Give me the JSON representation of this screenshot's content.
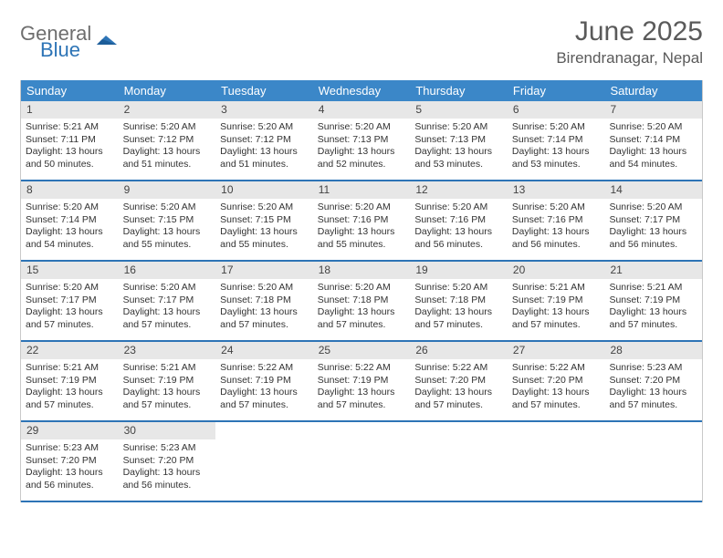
{
  "brand": {
    "general": "General",
    "blue": "Blue"
  },
  "header": {
    "title": "June 2025",
    "location": "Birendranagar, Nepal"
  },
  "colors": {
    "header_bg": "#3b87c8",
    "header_text": "#ffffff",
    "week_border": "#2d74b6",
    "daynum_bg": "#e7e7e7",
    "page_bg": "#ffffff",
    "text": "#333333"
  },
  "weekdays": [
    "Sunday",
    "Monday",
    "Tuesday",
    "Wednesday",
    "Thursday",
    "Friday",
    "Saturday"
  ],
  "weeks": [
    [
      {
        "n": "1",
        "sunrise": "Sunrise: 5:21 AM",
        "sunset": "Sunset: 7:11 PM",
        "daylight": "Daylight: 13 hours and 50 minutes."
      },
      {
        "n": "2",
        "sunrise": "Sunrise: 5:20 AM",
        "sunset": "Sunset: 7:12 PM",
        "daylight": "Daylight: 13 hours and 51 minutes."
      },
      {
        "n": "3",
        "sunrise": "Sunrise: 5:20 AM",
        "sunset": "Sunset: 7:12 PM",
        "daylight": "Daylight: 13 hours and 51 minutes."
      },
      {
        "n": "4",
        "sunrise": "Sunrise: 5:20 AM",
        "sunset": "Sunset: 7:13 PM",
        "daylight": "Daylight: 13 hours and 52 minutes."
      },
      {
        "n": "5",
        "sunrise": "Sunrise: 5:20 AM",
        "sunset": "Sunset: 7:13 PM",
        "daylight": "Daylight: 13 hours and 53 minutes."
      },
      {
        "n": "6",
        "sunrise": "Sunrise: 5:20 AM",
        "sunset": "Sunset: 7:14 PM",
        "daylight": "Daylight: 13 hours and 53 minutes."
      },
      {
        "n": "7",
        "sunrise": "Sunrise: 5:20 AM",
        "sunset": "Sunset: 7:14 PM",
        "daylight": "Daylight: 13 hours and 54 minutes."
      }
    ],
    [
      {
        "n": "8",
        "sunrise": "Sunrise: 5:20 AM",
        "sunset": "Sunset: 7:14 PM",
        "daylight": "Daylight: 13 hours and 54 minutes."
      },
      {
        "n": "9",
        "sunrise": "Sunrise: 5:20 AM",
        "sunset": "Sunset: 7:15 PM",
        "daylight": "Daylight: 13 hours and 55 minutes."
      },
      {
        "n": "10",
        "sunrise": "Sunrise: 5:20 AM",
        "sunset": "Sunset: 7:15 PM",
        "daylight": "Daylight: 13 hours and 55 minutes."
      },
      {
        "n": "11",
        "sunrise": "Sunrise: 5:20 AM",
        "sunset": "Sunset: 7:16 PM",
        "daylight": "Daylight: 13 hours and 55 minutes."
      },
      {
        "n": "12",
        "sunrise": "Sunrise: 5:20 AM",
        "sunset": "Sunset: 7:16 PM",
        "daylight": "Daylight: 13 hours and 56 minutes."
      },
      {
        "n": "13",
        "sunrise": "Sunrise: 5:20 AM",
        "sunset": "Sunset: 7:16 PM",
        "daylight": "Daylight: 13 hours and 56 minutes."
      },
      {
        "n": "14",
        "sunrise": "Sunrise: 5:20 AM",
        "sunset": "Sunset: 7:17 PM",
        "daylight": "Daylight: 13 hours and 56 minutes."
      }
    ],
    [
      {
        "n": "15",
        "sunrise": "Sunrise: 5:20 AM",
        "sunset": "Sunset: 7:17 PM",
        "daylight": "Daylight: 13 hours and 57 minutes."
      },
      {
        "n": "16",
        "sunrise": "Sunrise: 5:20 AM",
        "sunset": "Sunset: 7:17 PM",
        "daylight": "Daylight: 13 hours and 57 minutes."
      },
      {
        "n": "17",
        "sunrise": "Sunrise: 5:20 AM",
        "sunset": "Sunset: 7:18 PM",
        "daylight": "Daylight: 13 hours and 57 minutes."
      },
      {
        "n": "18",
        "sunrise": "Sunrise: 5:20 AM",
        "sunset": "Sunset: 7:18 PM",
        "daylight": "Daylight: 13 hours and 57 minutes."
      },
      {
        "n": "19",
        "sunrise": "Sunrise: 5:20 AM",
        "sunset": "Sunset: 7:18 PM",
        "daylight": "Daylight: 13 hours and 57 minutes."
      },
      {
        "n": "20",
        "sunrise": "Sunrise: 5:21 AM",
        "sunset": "Sunset: 7:19 PM",
        "daylight": "Daylight: 13 hours and 57 minutes."
      },
      {
        "n": "21",
        "sunrise": "Sunrise: 5:21 AM",
        "sunset": "Sunset: 7:19 PM",
        "daylight": "Daylight: 13 hours and 57 minutes."
      }
    ],
    [
      {
        "n": "22",
        "sunrise": "Sunrise: 5:21 AM",
        "sunset": "Sunset: 7:19 PM",
        "daylight": "Daylight: 13 hours and 57 minutes."
      },
      {
        "n": "23",
        "sunrise": "Sunrise: 5:21 AM",
        "sunset": "Sunset: 7:19 PM",
        "daylight": "Daylight: 13 hours and 57 minutes."
      },
      {
        "n": "24",
        "sunrise": "Sunrise: 5:22 AM",
        "sunset": "Sunset: 7:19 PM",
        "daylight": "Daylight: 13 hours and 57 minutes."
      },
      {
        "n": "25",
        "sunrise": "Sunrise: 5:22 AM",
        "sunset": "Sunset: 7:19 PM",
        "daylight": "Daylight: 13 hours and 57 minutes."
      },
      {
        "n": "26",
        "sunrise": "Sunrise: 5:22 AM",
        "sunset": "Sunset: 7:20 PM",
        "daylight": "Daylight: 13 hours and 57 minutes."
      },
      {
        "n": "27",
        "sunrise": "Sunrise: 5:22 AM",
        "sunset": "Sunset: 7:20 PM",
        "daylight": "Daylight: 13 hours and 57 minutes."
      },
      {
        "n": "28",
        "sunrise": "Sunrise: 5:23 AM",
        "sunset": "Sunset: 7:20 PM",
        "daylight": "Daylight: 13 hours and 57 minutes."
      }
    ],
    [
      {
        "n": "29",
        "sunrise": "Sunrise: 5:23 AM",
        "sunset": "Sunset: 7:20 PM",
        "daylight": "Daylight: 13 hours and 56 minutes."
      },
      {
        "n": "30",
        "sunrise": "Sunrise: 5:23 AM",
        "sunset": "Sunset: 7:20 PM",
        "daylight": "Daylight: 13 hours and 56 minutes."
      },
      {
        "empty": true
      },
      {
        "empty": true
      },
      {
        "empty": true
      },
      {
        "empty": true
      },
      {
        "empty": true
      }
    ]
  ]
}
